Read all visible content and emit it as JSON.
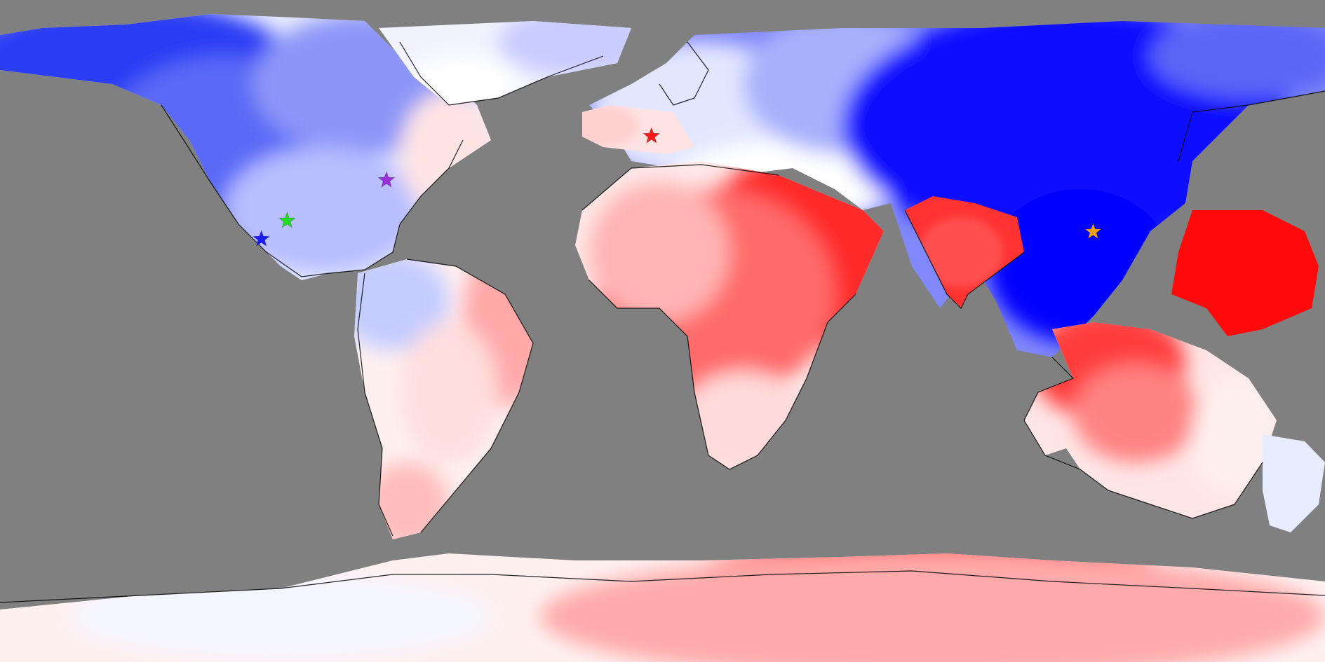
{
  "map": {
    "projection": "equirectangular",
    "ocean_color": "#808080",
    "colors": {
      "cold": "#0000ff",
      "neutral": "#ffffff",
      "warm": "#ff0000",
      "coastline": "#000000"
    },
    "markers": [
      {
        "name": "marker-blue-star",
        "color": "#1a1aff",
        "lon": -109,
        "lat": 25
      },
      {
        "name": "marker-green-star",
        "color": "#22dd22",
        "lon": -102,
        "lat": 30
      },
      {
        "name": "marker-purple-star",
        "color": "#9b30d9",
        "lon": -75,
        "lat": 41
      },
      {
        "name": "marker-red-star",
        "color": "#ff1a1a",
        "lon": -3,
        "lat": 53
      },
      {
        "name": "marker-orange-star",
        "color": "#f0a020",
        "lon": 117,
        "lat": 27
      }
    ]
  }
}
